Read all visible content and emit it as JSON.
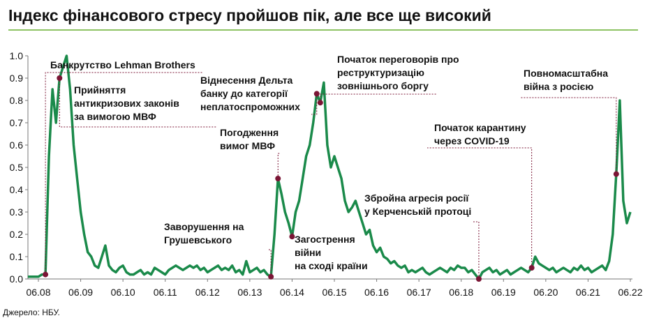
{
  "chart_data": {
    "type": "line",
    "title": "Індекс фінансового стресу пройшов пік, але все ще високий",
    "source": "Джерело: НБУ.",
    "color": "#1a8a4a",
    "marker_color": "#7b1535",
    "x": [
      "03.08",
      "04.08",
      "05.08",
      "06.08",
      "07.08",
      "08.08",
      "09.08",
      "10.08",
      "11.08",
      "12.08",
      "01.09",
      "02.09",
      "03.09",
      "04.09",
      "05.09",
      "06.09",
      "07.09",
      "08.09",
      "09.09",
      "10.09",
      "11.09",
      "12.09",
      "01.10",
      "02.10",
      "03.10",
      "04.10",
      "05.10",
      "06.10",
      "07.10",
      "08.10",
      "09.10",
      "10.10",
      "11.10",
      "12.10",
      "01.11",
      "02.11",
      "03.11",
      "04.11",
      "05.11",
      "06.11",
      "07.11",
      "08.11",
      "09.11",
      "10.11",
      "11.11",
      "12.11",
      "01.12",
      "02.12",
      "03.12",
      "04.12",
      "05.12",
      "06.12",
      "07.12",
      "08.12",
      "09.12",
      "10.12",
      "11.12",
      "12.12",
      "01.13",
      "02.13",
      "03.13",
      "04.13",
      "05.13",
      "06.13",
      "07.13",
      "08.13",
      "09.13",
      "10.13",
      "11.13",
      "12.13",
      "01.14",
      "02.14",
      "03.14",
      "04.14",
      "05.14",
      "06.14",
      "07.14",
      "08.14",
      "09.14",
      "10.14",
      "11.14",
      "12.14",
      "01.15",
      "02.15",
      "03.15",
      "04.15",
      "05.15",
      "06.15",
      "07.15",
      "08.15",
      "09.15",
      "10.15",
      "11.15",
      "12.15",
      "01.16",
      "02.16",
      "03.16",
      "04.16",
      "05.16",
      "06.16",
      "07.16",
      "08.16",
      "09.16",
      "10.16",
      "11.16",
      "12.16",
      "01.17",
      "02.17",
      "03.17",
      "04.17",
      "05.17",
      "06.17",
      "07.17",
      "08.17",
      "09.17",
      "10.17",
      "11.17",
      "12.17",
      "01.18",
      "02.18",
      "03.18",
      "04.18",
      "05.18",
      "06.18",
      "07.18",
      "08.18",
      "09.18",
      "10.18",
      "11.18",
      "12.18",
      "01.19",
      "02.19",
      "03.19",
      "04.19",
      "05.19",
      "06.19",
      "07.19",
      "08.19",
      "09.19",
      "10.19",
      "11.19",
      "12.19",
      "01.20",
      "02.20",
      "03.20",
      "04.20",
      "05.20",
      "06.20",
      "07.20",
      "08.20",
      "09.20",
      "10.20",
      "11.20",
      "12.20",
      "01.21",
      "02.21",
      "03.21",
      "04.21",
      "05.21",
      "06.21",
      "07.21",
      "08.21",
      "09.21",
      "10.21",
      "11.21",
      "12.21",
      "01.22",
      "02.22",
      "03.22",
      "04.22",
      "05.22",
      "06.22"
    ],
    "values": [
      0.01,
      0.01,
      0.01,
      0.01,
      0.02,
      0.02,
      0.55,
      0.85,
      0.7,
      0.9,
      0.95,
      1.0,
      0.85,
      0.6,
      0.45,
      0.3,
      0.2,
      0.12,
      0.1,
      0.06,
      0.05,
      0.1,
      0.15,
      0.06,
      0.04,
      0.03,
      0.05,
      0.06,
      0.03,
      0.02,
      0.02,
      0.03,
      0.04,
      0.02,
      0.03,
      0.02,
      0.05,
      0.04,
      0.03,
      0.02,
      0.04,
      0.05,
      0.06,
      0.05,
      0.04,
      0.05,
      0.06,
      0.05,
      0.06,
      0.04,
      0.05,
      0.03,
      0.04,
      0.05,
      0.06,
      0.04,
      0.05,
      0.04,
      0.06,
      0.03,
      0.04,
      0.02,
      0.08,
      0.03,
      0.04,
      0.05,
      0.03,
      0.04,
      0.02,
      0.01,
      0.2,
      0.45,
      0.38,
      0.3,
      0.25,
      0.19,
      0.3,
      0.35,
      0.45,
      0.55,
      0.6,
      0.7,
      0.83,
      0.79,
      0.88,
      0.6,
      0.5,
      0.55,
      0.5,
      0.45,
      0.35,
      0.3,
      0.32,
      0.35,
      0.3,
      0.25,
      0.2,
      0.22,
      0.15,
      0.12,
      0.14,
      0.1,
      0.09,
      0.07,
      0.08,
      0.06,
      0.05,
      0.06,
      0.03,
      0.04,
      0.03,
      0.04,
      0.05,
      0.03,
      0.02,
      0.03,
      0.04,
      0.05,
      0.04,
      0.03,
      0.05,
      0.04,
      0.06,
      0.05,
      0.05,
      0.03,
      0.04,
      0.02,
      0.0,
      0.03,
      0.04,
      0.05,
      0.03,
      0.04,
      0.02,
      0.03,
      0.04,
      0.02,
      0.03,
      0.04,
      0.05,
      0.04,
      0.03,
      0.05,
      0.1,
      0.07,
      0.06,
      0.05,
      0.04,
      0.05,
      0.03,
      0.04,
      0.05,
      0.04,
      0.03,
      0.05,
      0.04,
      0.06,
      0.04,
      0.05,
      0.03,
      0.04,
      0.05,
      0.06,
      0.04,
      0.08,
      0.2,
      0.47,
      0.8,
      0.35,
      0.25,
      0.3
    ],
    "ylim": [
      0,
      1.0
    ],
    "yticks": [
      {
        "value": 0,
        "label": "0.0"
      },
      0.1,
      0.2,
      0.3,
      0.4,
      0.5,
      0.6,
      0.7,
      0.8,
      0.9,
      {
        "value": 1,
        "label": "1.0"
      }
    ],
    "xticks": [
      "06.08",
      "06.09",
      "06.10",
      "06.11",
      "06.12",
      "06.13",
      "06.14",
      "06.15",
      "06.16",
      "06.17",
      "06.18",
      "06.19",
      "06.20",
      "06.21",
      "06.22"
    ],
    "annotations": [
      {
        "text": [
          "Банкрутство Lehman Brothers"
        ],
        "x": "08.08",
        "y": 0.02
      },
      {
        "text": [
          "Прийняття",
          "антикризових законів",
          "за вимогою МВФ"
        ],
        "x": "12.08",
        "y": 0.9
      },
      {
        "text": [
          "Віднесення Дельта",
          "банку до категорії",
          "неплатоспроможних"
        ],
        "x": "01.15",
        "y": 0.83
      },
      {
        "text": [
          "Погодження",
          "вимог МВФ"
        ],
        "x": "02.14",
        "y": 0.45
      },
      {
        "text": [
          "Заворушення на",
          "Грушевського"
        ],
        "x": "12.13",
        "y": 0.01
      },
      {
        "text": [
          "Загострення",
          "війни",
          "на сході країни"
        ],
        "x": "06.14",
        "y": 0.19
      },
      {
        "text": [
          "Початок переговорів про",
          "реструктуризацію",
          "зовнішнього боргу"
        ],
        "x": "02.15",
        "y": 0.79
      },
      {
        "text": [
          "Збройна агресія росії",
          "у Керченській протоці"
        ],
        "x": "11.18",
        "y": 0.0
      },
      {
        "text": [
          "Початок карантину",
          "через COVID-19"
        ],
        "x": "02.20",
        "y": 0.05
      },
      {
        "text": [
          "Повномасштабна",
          "війна з росією"
        ],
        "x": "02.22",
        "y": 0.47
      }
    ]
  }
}
